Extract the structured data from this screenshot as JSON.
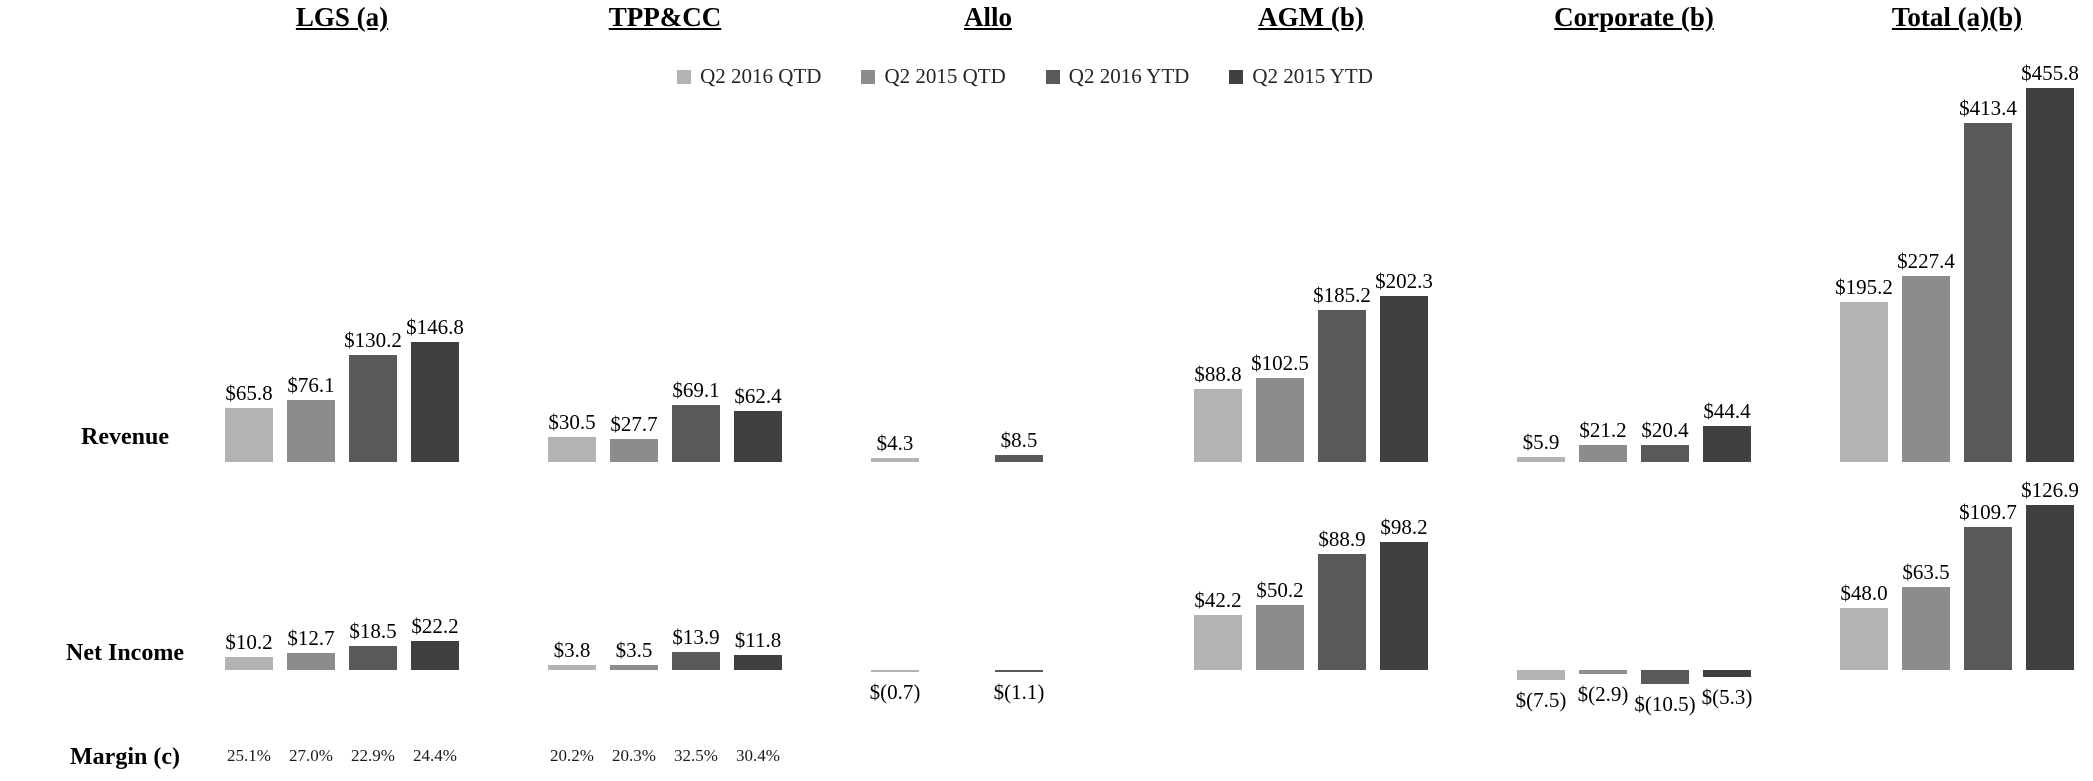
{
  "legend": [
    {
      "label": "Q2 2016 QTD",
      "color": "#b3b3b3"
    },
    {
      "label": "Q2 2015 QTD",
      "color": "#8c8c8c"
    },
    {
      "label": "Q2 2016 YTD",
      "color": "#595959"
    },
    {
      "label": "Q2 2015 YTD",
      "color": "#404040"
    }
  ],
  "row_labels": {
    "revenue": "Revenue",
    "net_income": "Net Income",
    "margin": "Margin (c)"
  },
  "chart_data": {
    "type": "bar",
    "series": [
      "Q2 2016 QTD",
      "Q2 2015 QTD",
      "Q2 2016 YTD",
      "Q2 2015 YTD"
    ],
    "legend_position": "top",
    "grid": false,
    "segments": [
      {
        "name": "LGS (a)",
        "revenue": [
          65.8,
          76.1,
          130.2,
          146.8
        ],
        "revenue_labels": [
          "$65.8",
          "$76.1",
          "$130.2",
          "$146.8"
        ],
        "net_income": [
          10.2,
          12.7,
          18.5,
          22.2
        ],
        "net_income_labels": [
          "$10.2",
          "$12.7",
          "$18.5",
          "$22.2"
        ],
        "margin": [
          "25.1%",
          "27.0%",
          "22.9%",
          "24.4%"
        ]
      },
      {
        "name": "TPP&CC",
        "revenue": [
          30.5,
          27.7,
          69.1,
          62.4
        ],
        "revenue_labels": [
          "$30.5",
          "$27.7",
          "$69.1",
          "$62.4"
        ],
        "net_income": [
          3.8,
          3.5,
          13.9,
          11.8
        ],
        "net_income_labels": [
          "$3.8",
          "$3.5",
          "$13.9",
          "$11.8"
        ],
        "margin": [
          "20.2%",
          "20.3%",
          "32.5%",
          "30.4%"
        ]
      },
      {
        "name": "Allo",
        "revenue": [
          4.3,
          null,
          8.5,
          null
        ],
        "revenue_labels": [
          "$4.3",
          null,
          "$8.5",
          null
        ],
        "net_income": [
          -0.7,
          null,
          -1.1,
          null
        ],
        "net_income_labels": [
          "$(0.7)",
          null,
          "$(1.1)",
          null
        ],
        "margin": null
      },
      {
        "name": "AGM (b)",
        "revenue": [
          88.8,
          102.5,
          185.2,
          202.3
        ],
        "revenue_labels": [
          "$88.8",
          "$102.5",
          "$185.2",
          "$202.3"
        ],
        "net_income": [
          42.2,
          50.2,
          88.9,
          98.2
        ],
        "net_income_labels": [
          "$42.2",
          "$50.2",
          "$88.9",
          "$98.2"
        ],
        "margin": null
      },
      {
        "name": "Corporate (b)",
        "revenue": [
          5.9,
          21.2,
          20.4,
          44.4
        ],
        "revenue_labels": [
          "$5.9",
          "$21.2",
          "$20.4",
          "$44.4"
        ],
        "net_income": [
          -7.5,
          -2.9,
          -10.5,
          -5.3
        ],
        "net_income_labels": [
          "$(7.5)",
          "$(2.9)",
          "$(10.5)",
          "$(5.3)"
        ],
        "margin": null
      },
      {
        "name": "Total (a)(b)",
        "revenue": [
          195.2,
          227.4,
          413.4,
          455.8
        ],
        "revenue_labels": [
          "$195.2",
          "$227.4",
          "$413.4",
          "$455.8"
        ],
        "net_income": [
          48.0,
          63.5,
          109.7,
          126.9
        ],
        "net_income_labels": [
          "$48.0",
          "$63.5",
          "$109.7",
          "$126.9"
        ],
        "margin": null
      }
    ]
  }
}
